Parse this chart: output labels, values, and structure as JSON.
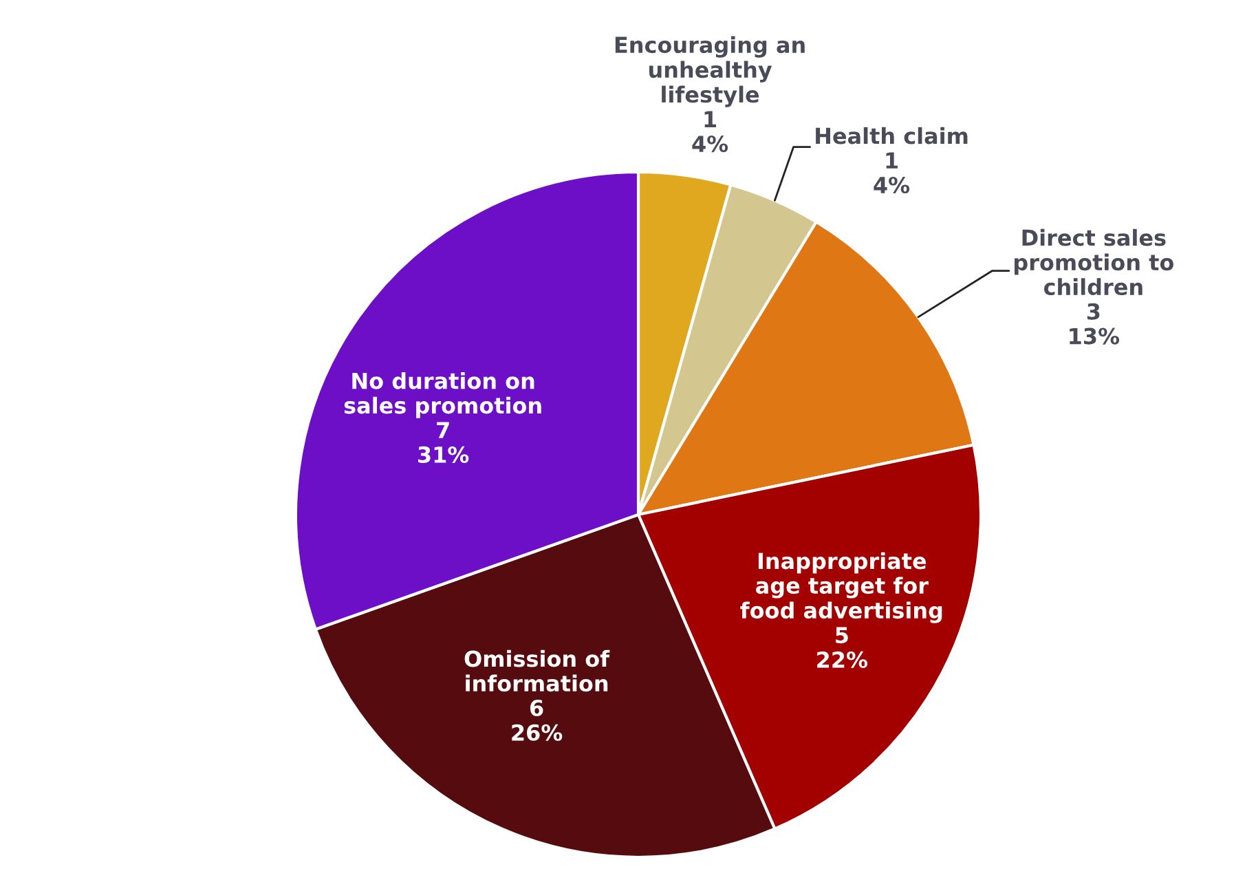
{
  "chart_data": {
    "type": "pie",
    "categories": [
      "Encouraging an\nunhealthy\nlifestyle",
      "Health claim",
      "Direct sales\npromotion to\nchildren",
      "Inappropriate\nage target for\nfood advertising",
      "Omission of\ninformation",
      "No duration on\nsales promotion"
    ],
    "values": [
      1,
      1,
      3,
      5,
      6,
      7
    ],
    "colors": [
      "#dfa81e",
      "#d4c68f",
      "#de7714",
      "#a30000",
      "#560c0e",
      "#6c0fc6"
    ],
    "value_labels": [
      "1\n4%",
      "1\n4%",
      "3\n13%",
      "5\n22%",
      "6\n26%",
      "7\n31%"
    ]
  }
}
